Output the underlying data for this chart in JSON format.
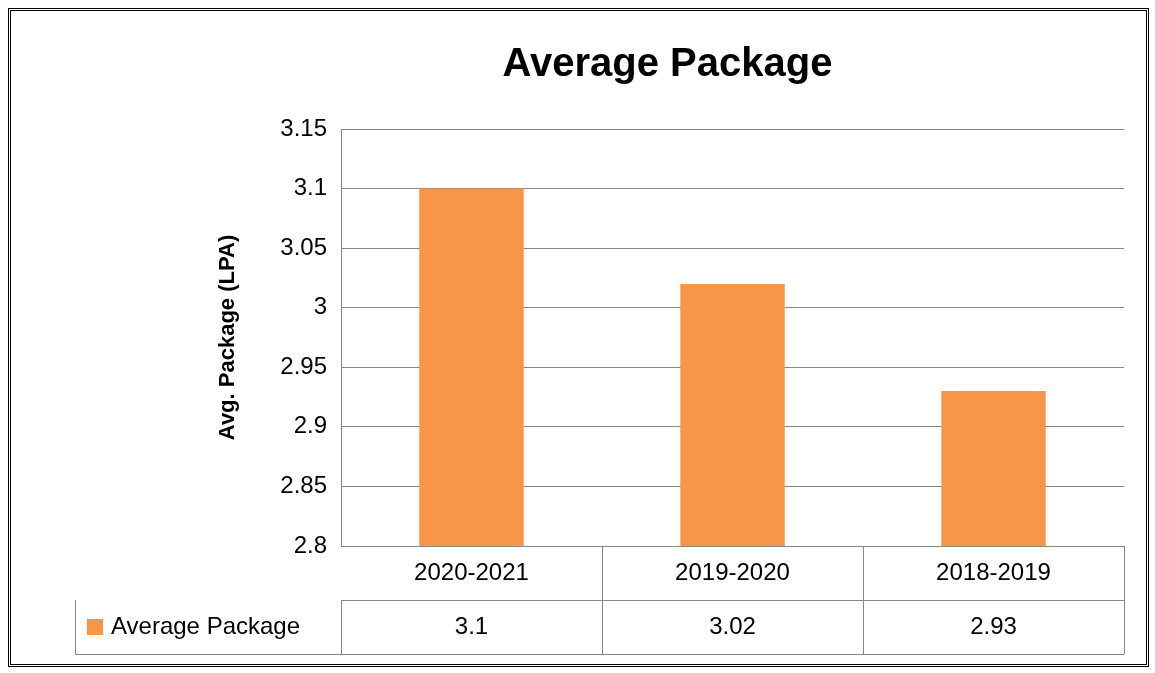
{
  "chart_data": {
    "type": "bar",
    "title": "Average Package",
    "ylabel": "Avg. Package (LPA)",
    "categories": [
      "2020-2021",
      "2019-2020",
      "2018-2019"
    ],
    "series": [
      {
        "name": "Average Package",
        "color": "#f79646",
        "values": [
          3.1,
          3.02,
          2.93
        ]
      }
    ],
    "ylim": [
      2.8,
      3.15
    ],
    "yticks": [
      2.8,
      2.85,
      2.9,
      2.95,
      3,
      3.05,
      3.1,
      3.15
    ],
    "grid": "y",
    "legend": "bottom",
    "data_labels": true
  }
}
